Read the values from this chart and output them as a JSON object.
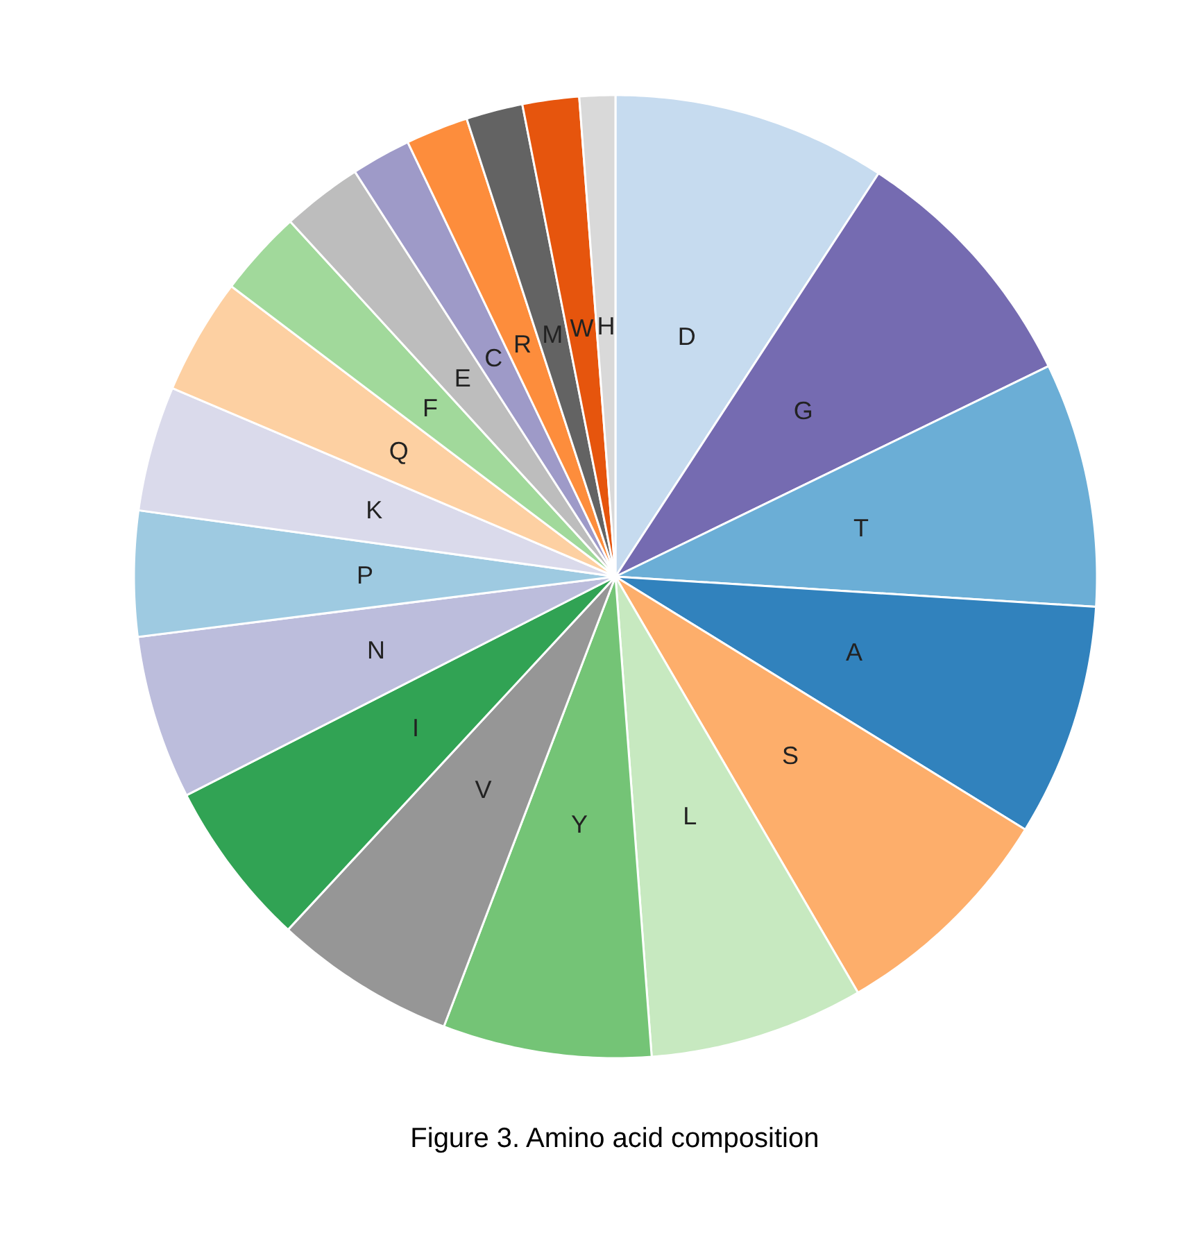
{
  "chart_data": {
    "type": "pie",
    "categories": [
      "D",
      "G",
      "T",
      "A",
      "S",
      "L",
      "Y",
      "V",
      "I",
      "N",
      "P",
      "K",
      "Q",
      "F",
      "E",
      "C",
      "R",
      "M",
      "W",
      "H"
    ],
    "values": [
      9.2,
      8.6,
      8.2,
      7.8,
      7.8,
      7.2,
      7.0,
      6.1,
      5.6,
      5.5,
      4.2,
      4.2,
      3.9,
      2.9,
      2.7,
      2.0,
      2.1,
      1.9,
      1.9,
      1.2
    ],
    "colors": [
      "#c6dbef",
      "#756bb1",
      "#6baed6",
      "#3182bd",
      "#fdae6b",
      "#c7e9c0",
      "#74c476",
      "#969696",
      "#31a354",
      "#bcbddc",
      "#9ecae1",
      "#dadaeb",
      "#fdd0a2",
      "#a1d99b",
      "#bdbdbd",
      "#9e9ac8",
      "#fd8d3c",
      "#636363",
      "#e6550d",
      "#d9d9d9"
    ],
    "annotations": [
      "Figure 3. Amino acid composition"
    ]
  }
}
